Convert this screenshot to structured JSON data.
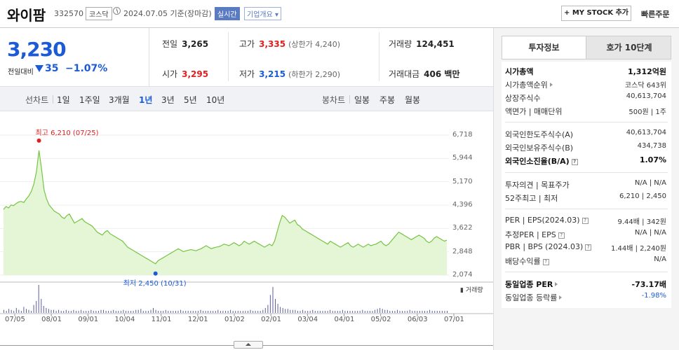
{
  "header": {
    "name": "와이팜",
    "code": "332570",
    "market": "코스닥",
    "date": "2024.07.05  기준(장마감)",
    "realtime": "실시간",
    "company_info": "기업개요 ▾",
    "mystock": "+ MY STOCK 추가",
    "quick_order": "빠른주문"
  },
  "price": {
    "current": "3,230",
    "change_label": "전일대비",
    "change": "35",
    "change_pct": "−1.07%"
  },
  "stats": {
    "prev_close": {
      "label": "전일",
      "value": "3,265"
    },
    "open": {
      "label": "시가",
      "value": "3,295"
    },
    "high": {
      "label": "고가",
      "value": "3,335",
      "sub": "(상한가 4,240)"
    },
    "low": {
      "label": "저가",
      "value": "3,215",
      "sub": "(하한가 2,290)"
    },
    "volume": {
      "label": "거래량",
      "value": "124,451"
    },
    "amount": {
      "label": "거래대금",
      "value": "406 백만"
    }
  },
  "periods": {
    "line_label": "선차트",
    "line_items": [
      "1일",
      "1주일",
      "3개월",
      "1년",
      "3년",
      "5년",
      "10년"
    ],
    "selected": "1년",
    "candle_label": "봉차트",
    "candle_items": [
      "일봉",
      "주봉",
      "월봉"
    ]
  },
  "chart_data": {
    "type": "area",
    "y_ticks": [
      "6,718",
      "5,944",
      "5,170",
      "4,396",
      "3,622",
      "2,848",
      "2,074"
    ],
    "ylim": [
      2074,
      6718
    ],
    "x_ticks": [
      "07/05",
      "08/01",
      "09/01",
      "10/04",
      "11/01",
      "12/01",
      "01/02",
      "02/01",
      "03/04",
      "04/01",
      "05/02",
      "06/03",
      "07/01"
    ],
    "high_annotation": "최고 6,210 (07/25)",
    "low_annotation": "최저 2,450 (10/31)",
    "volume_legend": "거래량",
    "line_color": "#76c442",
    "fill_color": "#e5f6d6",
    "series": [
      {
        "values": [
          4250,
          4350,
          4300,
          4400,
          4380,
          4450,
          4500,
          4520,
          4480,
          4600,
          4700,
          4850,
          5100,
          5500,
          6210,
          5600,
          4900,
          4600,
          4400,
          4300,
          4200,
          4150,
          4100,
          4000,
          3950,
          4050,
          4100,
          3950,
          3800,
          3850,
          3900,
          3950,
          3850,
          3800,
          3750,
          3700,
          3600,
          3500,
          3450,
          3400,
          3500,
          3550,
          3450,
          3400,
          3350,
          3300,
          3250,
          3200,
          3100,
          3000,
          2950,
          2900,
          2850,
          2800,
          2750,
          2700,
          2650,
          2600,
          2550,
          2500,
          2450,
          2550,
          2600,
          2650,
          2700,
          2750,
          2800,
          2850,
          2900,
          2950,
          2900,
          2850,
          2880,
          2900,
          2920,
          2900,
          2880,
          2920,
          2950,
          3000,
          3050,
          3000,
          2950,
          2980,
          3000,
          3020,
          3050,
          3100,
          3080,
          3050,
          3100,
          3150,
          3100,
          3050,
          3100,
          3200,
          3150,
          3100,
          3150,
          3200,
          3150,
          3100,
          3050,
          3000,
          3050,
          3100,
          3050,
          3200,
          3500,
          3800,
          4050,
          4000,
          3900,
          3800,
          3850,
          3900,
          3750,
          3700,
          3600,
          3550,
          3500,
          3450,
          3400,
          3350,
          3300,
          3250,
          3200,
          3150,
          3100,
          3200,
          3150,
          3100,
          3050,
          3000,
          3050,
          3100,
          3150,
          3050,
          3000,
          3050,
          3100,
          3050,
          3000,
          3050,
          3100,
          3050,
          3080,
          3100,
          3150,
          3200,
          3100,
          3050,
          3100,
          3200,
          3300,
          3400,
          3500,
          3450,
          3400,
          3350,
          3300,
          3250,
          3300,
          3350,
          3400,
          3350,
          3300,
          3200,
          3150,
          3200,
          3300,
          3350,
          3300,
          3250,
          3200,
          3230
        ]
      }
    ],
    "volume": [
      3,
      2,
      4,
      3,
      2,
      5,
      3,
      2,
      6,
      4,
      3,
      2,
      8,
      12,
      28,
      14,
      7,
      5,
      4,
      3,
      3,
      2,
      3,
      2,
      2,
      3,
      2,
      2,
      3,
      2,
      2,
      3,
      2,
      2,
      2,
      3,
      2,
      2,
      2,
      3,
      3,
      2,
      2,
      2,
      3,
      2,
      2,
      2,
      3,
      2,
      2,
      2,
      2,
      3,
      3,
      4,
      2,
      2,
      2,
      3,
      5,
      3,
      2,
      2,
      2,
      3,
      2,
      2,
      2,
      2,
      2,
      3,
      2,
      2,
      2,
      2,
      2,
      2,
      2,
      3,
      2,
      2,
      2,
      2,
      2,
      2,
      3,
      2,
      2,
      2,
      2,
      3,
      2,
      2,
      2,
      2,
      2,
      2,
      2,
      3,
      2,
      2,
      2,
      2,
      3,
      5,
      8,
      18,
      26,
      14,
      9,
      6,
      5,
      4,
      4,
      3,
      3,
      3,
      2,
      2,
      3,
      2,
      2,
      2,
      3,
      2,
      2,
      2,
      2,
      2,
      2,
      3,
      2,
      2,
      2,
      2,
      3,
      2,
      2,
      2,
      2,
      2,
      2,
      2,
      3,
      2,
      2,
      2,
      2,
      3,
      4,
      5,
      4,
      3,
      3,
      2,
      2,
      2,
      3,
      2,
      2,
      2,
      2,
      3,
      2,
      2,
      2,
      2,
      2,
      2,
      2,
      3,
      2,
      2,
      2,
      2,
      2,
      2,
      2
    ]
  },
  "right_panel": {
    "tabs": [
      "투자정보",
      "호가 10단계"
    ],
    "group1": [
      {
        "label": "시가총액",
        "value": "1,312억원",
        "bold": true
      },
      {
        "label": "시가총액순위",
        "value": "코스닥 643위"
      },
      {
        "label": "상장주식수",
        "value": "40,613,704"
      },
      {
        "label": "액면가 | 매매단위",
        "value": "500원 | 1주"
      }
    ],
    "group2": [
      {
        "label": "외국인한도주식수(A)",
        "value": "40,613,704"
      },
      {
        "label": "외국인보유주식수(B)",
        "value": "434,738"
      },
      {
        "label": "외국인소진율(B/A)",
        "value": "1.07%",
        "bold": true
      }
    ],
    "group3": [
      {
        "label": "투자의견 | 목표주가",
        "value": "N/A | N/A"
      },
      {
        "label": "52주최고 | 최저",
        "value": "6,210 | 2,450"
      }
    ],
    "group4": [
      {
        "label": "PER | EPS(2024.03)",
        "value": "9.44배 | 342원"
      },
      {
        "label": "추정PER | EPS",
        "value": "N/A | N/A"
      },
      {
        "label": "PBR | BPS (2024.03)",
        "value": "1.44배 | 2,240원"
      },
      {
        "label": "배당수익률",
        "value": "N/A"
      }
    ],
    "group5": [
      {
        "label": "동일업종 PER",
        "value": "-73.17배",
        "bold": true
      },
      {
        "label": "동일업종 등락률",
        "value": "-1.98%"
      }
    ]
  }
}
